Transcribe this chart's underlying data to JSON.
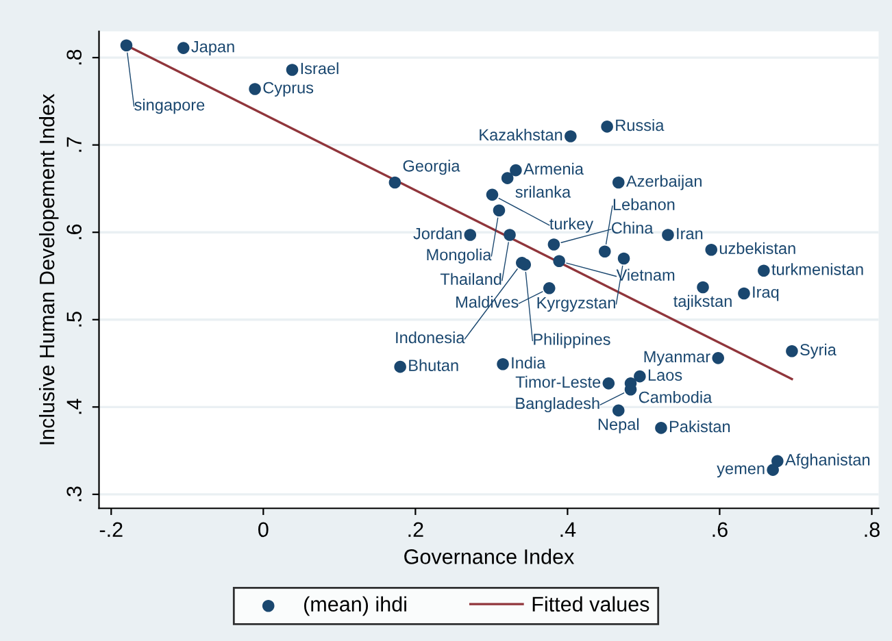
{
  "chart_data": {
    "type": "scatter",
    "xlabel": "Governance Index",
    "ylabel": "Inclusive Human Developement Index",
    "xlim": [
      -0.216,
      0.809
    ],
    "ylim": [
      0.284,
      0.83
    ],
    "xticks": [
      {
        "value": -0.2,
        "label": "-.2"
      },
      0,
      {
        "value": 0.2,
        "label": ".2"
      },
      {
        "value": 0.4,
        "label": ".4"
      },
      {
        "value": 0.6,
        "label": ".6"
      },
      {
        "value": 0.8,
        "label": ".8"
      }
    ],
    "yticks": [
      {
        "value": 0.3,
        "label": ".3"
      },
      {
        "value": 0.4,
        "label": ".4"
      },
      {
        "value": 0.5,
        "label": ".5"
      },
      {
        "value": 0.6,
        "label": ".6"
      },
      {
        "value": 0.7,
        "label": ".7"
      },
      {
        "value": 0.8,
        "label": ".8"
      }
    ],
    "grid": "y",
    "legend": "bottom",
    "series": [
      {
        "name": "(mean) ihdi",
        "color": "#1a476f",
        "marker": "circle",
        "x": [
          -0.18,
          -0.105,
          0.038,
          -0.011,
          0.173,
          0.272,
          0.452,
          0.404,
          0.332,
          0.321,
          0.467,
          0.301,
          0.31,
          0.324,
          0.382,
          0.449,
          0.474,
          0.532,
          0.589,
          0.658,
          0.34,
          0.344,
          0.389,
          0.376,
          0.578,
          0.632,
          0.18,
          0.315,
          0.598,
          0.695,
          0.495,
          0.483,
          0.454,
          0.483,
          0.467,
          0.523,
          0.676,
          0.67
        ],
        "values": [
          0.814,
          0.811,
          0.786,
          0.764,
          0.657,
          0.597,
          0.721,
          0.71,
          0.671,
          0.662,
          0.657,
          0.643,
          0.625,
          0.597,
          0.586,
          0.578,
          0.57,
          0.597,
          0.58,
          0.556,
          0.565,
          0.563,
          0.567,
          0.536,
          0.537,
          0.53,
          0.446,
          0.449,
          0.456,
          0.464,
          0.435,
          0.427,
          0.427,
          0.42,
          0.396,
          0.376,
          0.338,
          0.328
        ]
      },
      {
        "name": "Fitted values",
        "type": "line",
        "color": "#90353b",
        "x": [
          -0.18,
          0.695
        ],
        "values": [
          0.814,
          0.432
        ]
      }
    ],
    "annotations": [
      {
        "text": "singapore",
        "x": -0.18,
        "y": 0.814
      },
      {
        "text": "Japan",
        "x": -0.105,
        "y": 0.811
      },
      {
        "text": "Israel",
        "x": 0.038,
        "y": 0.786
      },
      {
        "text": "Cyprus",
        "x": -0.011,
        "y": 0.764
      },
      {
        "text": "Georgia",
        "x": 0.173,
        "y": 0.657
      },
      {
        "text": "Jordan",
        "x": 0.272,
        "y": 0.597
      },
      {
        "text": "Russia",
        "x": 0.452,
        "y": 0.721
      },
      {
        "text": "Kazakhstan",
        "x": 0.404,
        "y": 0.71
      },
      {
        "text": "Armenia",
        "x": 0.332,
        "y": 0.671
      },
      {
        "text": "srilanka",
        "x": 0.321,
        "y": 0.662
      },
      {
        "text": "Azerbaijan",
        "x": 0.467,
        "y": 0.657
      },
      {
        "text": "turkey",
        "x": 0.301,
        "y": 0.643
      },
      {
        "text": "Mongolia",
        "x": 0.31,
        "y": 0.625
      },
      {
        "text": "Thailand",
        "x": 0.324,
        "y": 0.597
      },
      {
        "text": "China",
        "x": 0.382,
        "y": 0.586
      },
      {
        "text": "Lebanon",
        "x": 0.449,
        "y": 0.578
      },
      {
        "text": "Kyrgyzstan",
        "x": 0.474,
        "y": 0.57
      },
      {
        "text": "Iran",
        "x": 0.532,
        "y": 0.597
      },
      {
        "text": "uzbekistan",
        "x": 0.589,
        "y": 0.58
      },
      {
        "text": "turkmenistan",
        "x": 0.658,
        "y": 0.556
      },
      {
        "text": "Indonesia",
        "x": 0.34,
        "y": 0.565
      },
      {
        "text": "Philippines",
        "x": 0.344,
        "y": 0.563
      },
      {
        "text": "Vietnam",
        "x": 0.389,
        "y": 0.567
      },
      {
        "text": "Maldives",
        "x": 0.376,
        "y": 0.536
      },
      {
        "text": "tajikstan",
        "x": 0.578,
        "y": 0.537
      },
      {
        "text": "Iraq",
        "x": 0.632,
        "y": 0.53
      },
      {
        "text": "Bhutan",
        "x": 0.18,
        "y": 0.446
      },
      {
        "text": "India",
        "x": 0.315,
        "y": 0.449
      },
      {
        "text": "Myanmar",
        "x": 0.598,
        "y": 0.456
      },
      {
        "text": "Syria",
        "x": 0.695,
        "y": 0.464
      },
      {
        "text": "Laos",
        "x": 0.495,
        "y": 0.435
      },
      {
        "text": "Cambodia",
        "x": 0.483,
        "y": 0.427
      },
      {
        "text": "Timor-Leste",
        "x": 0.454,
        "y": 0.427
      },
      {
        "text": "Bangladesh",
        "x": 0.483,
        "y": 0.42
      },
      {
        "text": "Nepal",
        "x": 0.467,
        "y": 0.396
      },
      {
        "text": "Pakistan",
        "x": 0.523,
        "y": 0.376
      },
      {
        "text": "Afghanistan",
        "x": 0.676,
        "y": 0.338
      },
      {
        "text": "yemen",
        "x": 0.67,
        "y": 0.328
      }
    ]
  }
}
